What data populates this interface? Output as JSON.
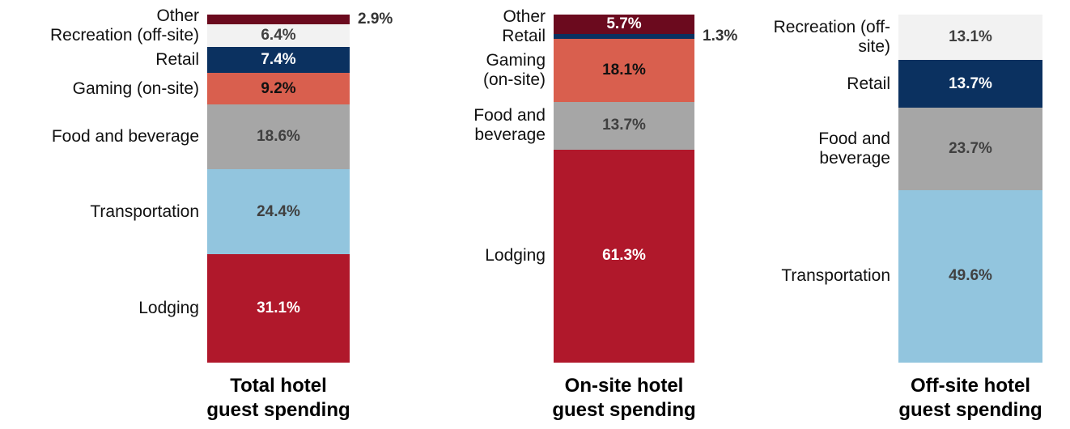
{
  "chart_data": [
    {
      "type": "stacked-bar",
      "title": "Total hotel guest spending",
      "series": [
        {
          "name": "Lodging",
          "color": "#b0182b",
          "values": [
            31.1
          ],
          "value_labels": [
            "31.1%"
          ]
        },
        {
          "name": "Transportation",
          "color": "#92c5de",
          "values": [
            24.4
          ],
          "value_labels": [
            "24.4%"
          ]
        },
        {
          "name": "Food and beverage",
          "color": "#a6a6a6",
          "values": [
            18.6
          ],
          "value_labels": [
            "18.6%"
          ]
        },
        {
          "name": "Gaming (on-site)",
          "color": "#d95f4e",
          "values": [
            9.2
          ],
          "value_labels": [
            "9.2%"
          ]
        },
        {
          "name": "Retail",
          "color": "#0b3160",
          "values": [
            7.4
          ],
          "value_labels": [
            "7.4%"
          ]
        },
        {
          "name": "Recreation (off-site)",
          "color": "#f2f2f2",
          "values": [
            6.4
          ],
          "value_labels": [
            "6.4%"
          ]
        },
        {
          "name": "Other",
          "color": "#6b0a1e",
          "values": [
            2.9
          ],
          "value_labels": [
            "2.9%"
          ]
        }
      ]
    },
    {
      "type": "stacked-bar",
      "title": "On-site hotel guest spending",
      "series": [
        {
          "name": "Lodging",
          "color": "#b0182b",
          "values": [
            61.3
          ],
          "value_labels": [
            "61.3%"
          ]
        },
        {
          "name": "Food and beverage",
          "color": "#a6a6a6",
          "values": [
            13.7
          ],
          "value_labels": [
            "13.7%"
          ]
        },
        {
          "name": "Gaming (on-site)",
          "color": "#d95f4e",
          "values": [
            18.1
          ],
          "value_labels": [
            "18.1%"
          ]
        },
        {
          "name": "Retail",
          "color": "#0b3160",
          "values": [
            1.3
          ],
          "value_labels": [
            "1.3%"
          ]
        },
        {
          "name": "Other",
          "color": "#6b0a1e",
          "values": [
            5.7
          ],
          "value_labels": [
            "5.7%"
          ]
        }
      ]
    },
    {
      "type": "stacked-bar",
      "title": "Off-site hotel guest spending",
      "series": [
        {
          "name": "Transportation",
          "color": "#92c5de",
          "values": [
            49.6
          ],
          "value_labels": [
            "49.6%"
          ]
        },
        {
          "name": "Food and beverage",
          "color": "#a6a6a6",
          "values": [
            23.7
          ],
          "value_labels": [
            "23.7%"
          ]
        },
        {
          "name": "Retail",
          "color": "#0b3160",
          "values": [
            13.7
          ],
          "value_labels": [
            "13.7%"
          ]
        },
        {
          "name": "Recreation (off-site)",
          "color": "#f2f2f2",
          "values": [
            13.1
          ],
          "value_labels": [
            "13.1%"
          ]
        }
      ]
    }
  ]
}
